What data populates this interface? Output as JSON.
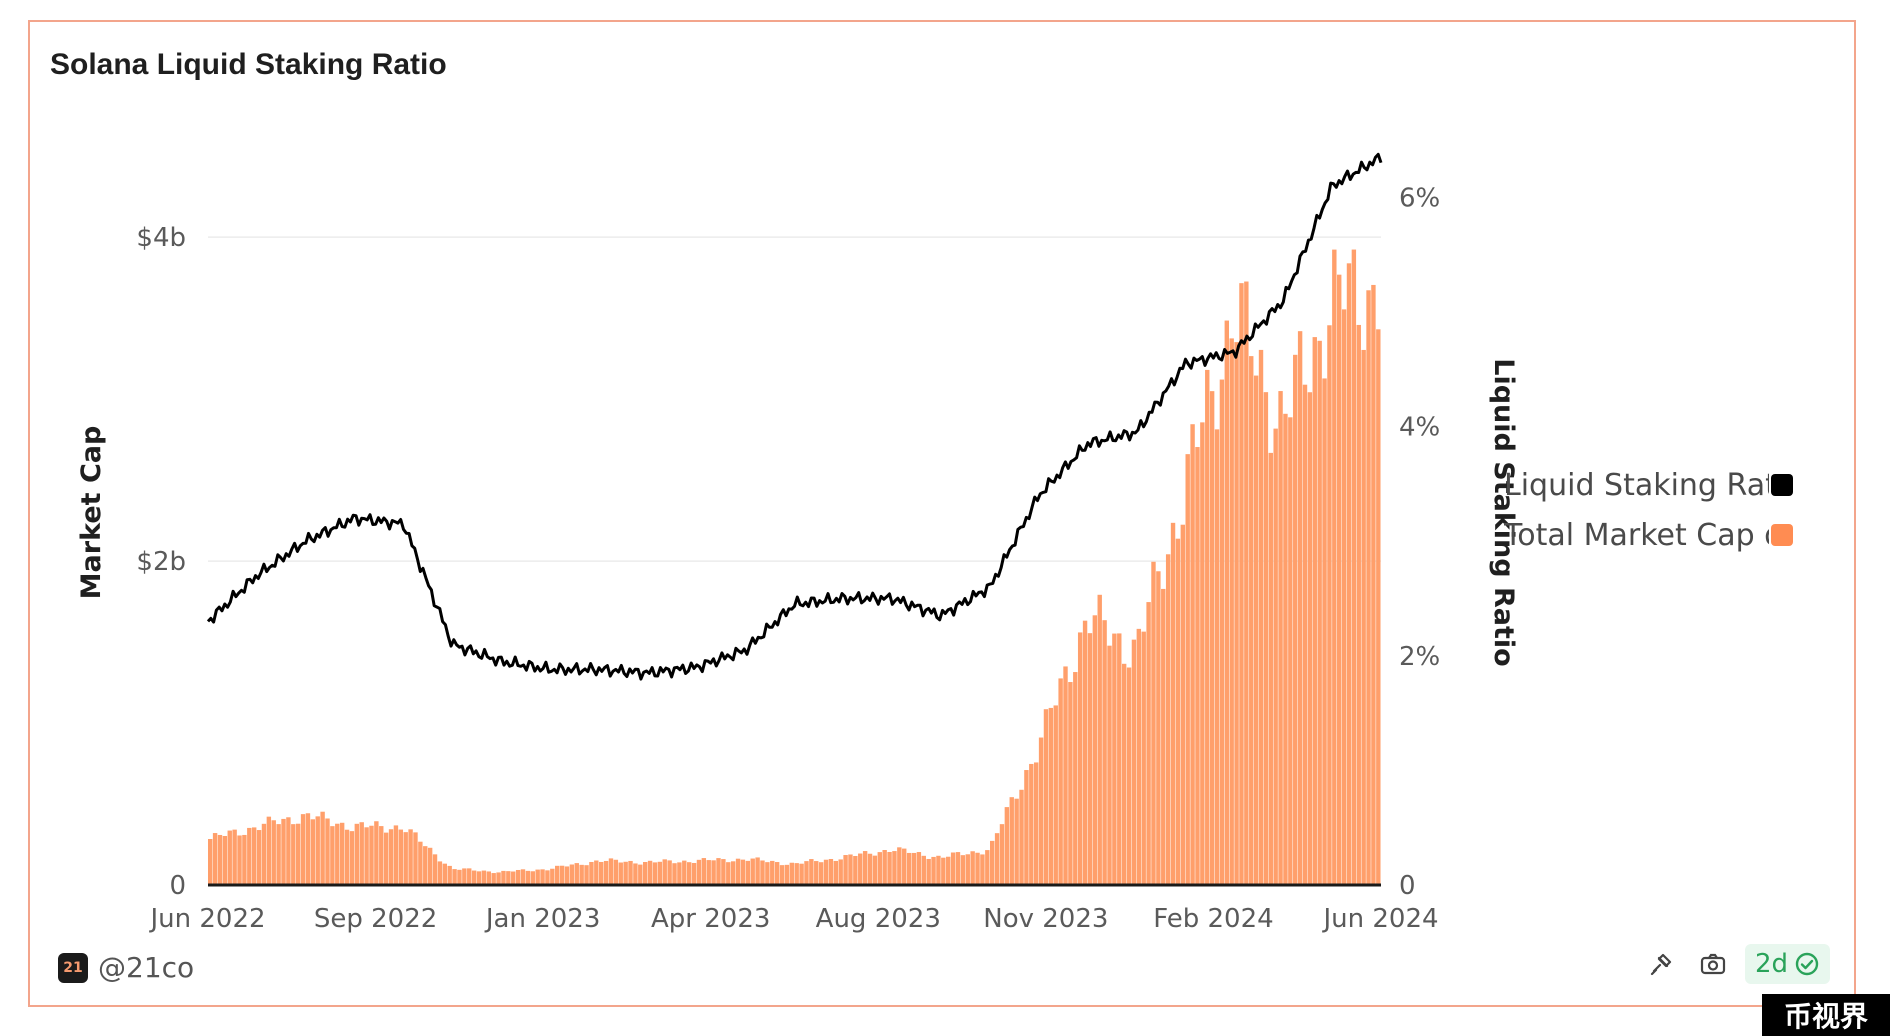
{
  "header": {
    "title": "Solana Liquid Staking Ratio"
  },
  "legend": {
    "items": [
      {
        "label": "Liquid Staking Ratio",
        "color": "#000000"
      },
      {
        "label": "Total Market Cap of",
        "color": "#ff8c52"
      }
    ]
  },
  "footer": {
    "brand_logo_text": "21",
    "brand": "@21co",
    "freshness": "2d"
  },
  "watermark": "币视界",
  "colors": {
    "bars": "#ff9f6b",
    "line": "#000000",
    "border": "#f3a58c",
    "grid": "#ececec"
  },
  "chart_data": {
    "type": "bar",
    "title": "Solana Liquid Staking Ratio",
    "x_ticks": [
      "Jun 2022",
      "Sep 2022",
      "Jan 2023",
      "Apr 2023",
      "Aug 2023",
      "Nov 2023",
      "Feb 2024",
      "Jun 2024"
    ],
    "y_left": {
      "label": "Market Cap",
      "ticks": [
        "0",
        "$2b",
        "$4b"
      ],
      "tick_values": [
        0,
        2000000000,
        4000000000
      ],
      "range": [
        0,
        4000000000
      ]
    },
    "y_right": {
      "label": "Liquid Staking Ratio",
      "ticks": [
        "0",
        "2%",
        "4%",
        "6%"
      ],
      "tick_values": [
        0,
        2,
        4,
        6
      ],
      "range": [
        0,
        6
      ]
    },
    "series": [
      {
        "name": "Total Market Cap of",
        "type": "bar",
        "axis": "left",
        "points": [
          [
            "Jun 2022",
            280000000.0
          ],
          [
            "Jul 2022",
            360000000.0
          ],
          [
            "Aug 2022",
            430000000.0
          ],
          [
            "Sep 2022",
            360000000.0
          ],
          [
            "Oct 2022",
            360000000.0
          ],
          [
            "Nov 2022",
            100000000.0
          ],
          [
            "Dec 2022",
            80000000.0
          ],
          [
            "Jan 2023",
            100000000.0
          ],
          [
            "Feb 2023",
            150000000.0
          ],
          [
            "Mar 2023",
            140000000.0
          ],
          [
            "Apr 2023",
            150000000.0
          ],
          [
            "May 2023",
            160000000.0
          ],
          [
            "Jun 2023",
            130000000.0
          ],
          [
            "Jul 2023",
            170000000.0
          ],
          [
            "Aug 2023",
            220000000.0
          ],
          [
            "Sep 2023",
            170000000.0
          ],
          [
            "Oct 2023",
            220000000.0
          ],
          [
            "Nov 2023",
            860000000.0
          ],
          [
            "Dec 2023",
            1650000000.0
          ],
          [
            "Jan 2024",
            1450000000.0
          ],
          [
            "Feb 2024",
            2450000000.0
          ],
          [
            "Mar 2024",
            3550000000.0
          ],
          [
            "Apr 2024",
            2850000000.0
          ],
          [
            "May 2024",
            3600000000.0
          ],
          [
            "Jun 2024",
            3700000000.0
          ]
        ]
      },
      {
        "name": "Liquid Staking Ratio",
        "type": "line",
        "axis": "right",
        "points": [
          [
            "Jun 2022",
            2.3
          ],
          [
            "Jul 2022",
            2.7
          ],
          [
            "Aug 2022",
            3.0
          ],
          [
            "Sep 2022",
            3.2
          ],
          [
            "Oct 2022",
            3.15
          ],
          [
            "Nov 2022",
            2.1
          ],
          [
            "Dec 2022",
            1.95
          ],
          [
            "Jan 2023",
            1.88
          ],
          [
            "Feb 2023",
            1.88
          ],
          [
            "Mar 2023",
            1.85
          ],
          [
            "Apr 2023",
            1.9
          ],
          [
            "May 2023",
            2.05
          ],
          [
            "Jun 2023",
            2.45
          ],
          [
            "Jul 2023",
            2.5
          ],
          [
            "Aug 2023",
            2.5
          ],
          [
            "Sep 2023",
            2.35
          ],
          [
            "Oct 2023",
            2.6
          ],
          [
            "Nov 2023",
            3.4
          ],
          [
            "Dec 2023",
            3.85
          ],
          [
            "Jan 2024",
            3.95
          ],
          [
            "Feb 2024",
            4.55
          ],
          [
            "Mar 2024",
            4.65
          ],
          [
            "Apr 2024",
            5.1
          ],
          [
            "May 2024",
            6.1
          ],
          [
            "Jun 2024",
            6.35
          ]
        ]
      }
    ],
    "grid": true,
    "legend_position": "right"
  }
}
